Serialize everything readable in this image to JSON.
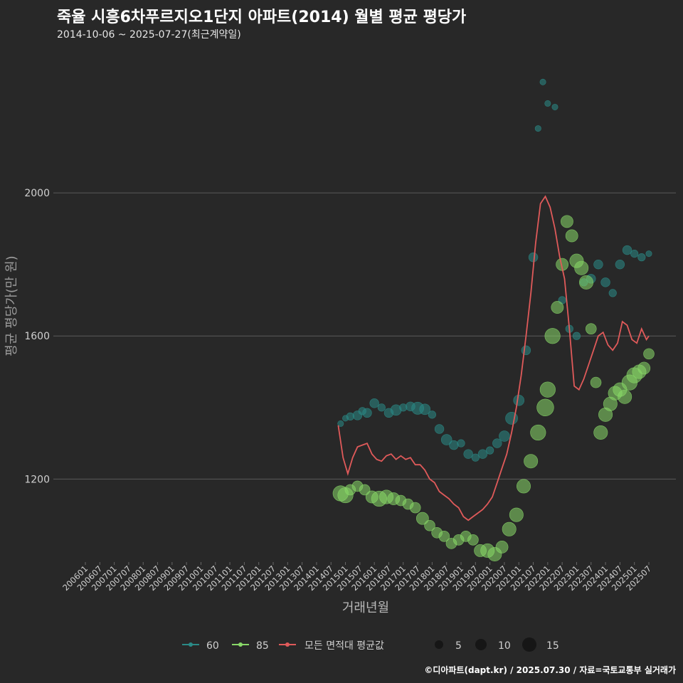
{
  "title": "죽율 시흥6차푸르지오1단지 아파트(2014) 월별 평균 평당가",
  "subtitle": "2014-10-06 ~ 2025-07-27(최근계약일)",
  "caption": "©디아파트(dapt.kr) / 2025.07.30 / 자료=국토교통부 실거래가",
  "colors": {
    "background": "#282828",
    "grid": "#5a5a5a",
    "series_60": "#2a8a86",
    "series_85": "#88d868",
    "average": "#e05a5a",
    "axis_text": "#d0d0d0"
  },
  "chart_data": {
    "type": "scatter",
    "xlabel": "거래년월",
    "ylabel": "평균 평당가(만 원)",
    "x_tick_labels": [
      "200601",
      "200607",
      "200701",
      "200707",
      "200801",
      "200807",
      "200901",
      "200907",
      "201001",
      "201007",
      "201101",
      "201107",
      "201201",
      "201207",
      "201301",
      "201307",
      "201401",
      "201407",
      "201501",
      "201507",
      "201601",
      "201607",
      "201701",
      "201707",
      "201801",
      "201807",
      "201901",
      "201907",
      "202001",
      "202007",
      "202101",
      "202107",
      "202201",
      "202207",
      "202301",
      "202307",
      "202401",
      "202407",
      "202501",
      "202507"
    ],
    "y_ticks": [
      1200,
      1600,
      2000
    ],
    "ylim": [
      968,
      2400
    ],
    "grid": true,
    "legend": {
      "position": "bottom",
      "series": [
        "60",
        "85",
        "모든 면적대 평균값"
      ],
      "size_title": "",
      "size_values": [
        5,
        10,
        15
      ]
    },
    "series": [
      {
        "name": "60",
        "points": [
          [
            "2014-11",
            1355,
            2
          ],
          [
            "2015-01",
            1370,
            2
          ],
          [
            "2015-03",
            1375,
            3
          ],
          [
            "2015-06",
            1378,
            4
          ],
          [
            "2015-08",
            1390,
            3
          ],
          [
            "2015-10",
            1385,
            4
          ],
          [
            "2016-01",
            1412,
            4
          ],
          [
            "2016-04",
            1400,
            3
          ],
          [
            "2016-07",
            1385,
            4
          ],
          [
            "2016-10",
            1393,
            5
          ],
          [
            "2017-01",
            1400,
            3
          ],
          [
            "2017-04",
            1403,
            4
          ],
          [
            "2017-07",
            1398,
            6
          ],
          [
            "2017-10",
            1395,
            5
          ],
          [
            "2018-01",
            1380,
            3
          ],
          [
            "2018-04",
            1340,
            4
          ],
          [
            "2018-07",
            1310,
            5
          ],
          [
            "2018-10",
            1295,
            4
          ],
          [
            "2019-01",
            1300,
            3
          ],
          [
            "2019-04",
            1270,
            4
          ],
          [
            "2019-07",
            1260,
            3
          ],
          [
            "2019-10",
            1270,
            4
          ],
          [
            "2020-01",
            1280,
            3
          ],
          [
            "2020-04",
            1300,
            4
          ],
          [
            "2020-07",
            1320,
            5
          ],
          [
            "2020-10",
            1370,
            6
          ],
          [
            "2021-01",
            1420,
            5
          ],
          [
            "2021-04",
            1560,
            4
          ],
          [
            "2021-07",
            1820,
            4
          ],
          [
            "2021-09",
            2180,
            2
          ],
          [
            "2021-11",
            2310,
            2
          ],
          [
            "2022-01",
            2250,
            2
          ],
          [
            "2022-04",
            2240,
            2
          ],
          [
            "2022-07",
            1700,
            3
          ],
          [
            "2022-10",
            1620,
            3
          ],
          [
            "2023-01",
            1600,
            3
          ],
          [
            "2023-04",
            1750,
            3
          ],
          [
            "2023-07",
            1760,
            4
          ],
          [
            "2023-10",
            1800,
            4
          ],
          [
            "2024-01",
            1750,
            4
          ],
          [
            "2024-04",
            1720,
            3
          ],
          [
            "2024-07",
            1800,
            4
          ],
          [
            "2024-10",
            1840,
            4
          ],
          [
            "2025-01",
            1830,
            3
          ],
          [
            "2025-04",
            1820,
            3
          ],
          [
            "2025-07",
            1830,
            2
          ]
        ]
      },
      {
        "name": "85",
        "points": [
          [
            "2014-11",
            1160,
            8
          ],
          [
            "2015-01",
            1155,
            8
          ],
          [
            "2015-03",
            1170,
            5
          ],
          [
            "2015-06",
            1180,
            5
          ],
          [
            "2015-09",
            1170,
            5
          ],
          [
            "2015-12",
            1150,
            6
          ],
          [
            "2016-03",
            1145,
            8
          ],
          [
            "2016-06",
            1150,
            7
          ],
          [
            "2016-09",
            1145,
            6
          ],
          [
            "2016-12",
            1140,
            5
          ],
          [
            "2017-03",
            1130,
            5
          ],
          [
            "2017-06",
            1120,
            5
          ],
          [
            "2017-09",
            1090,
            6
          ],
          [
            "2017-12",
            1070,
            5
          ],
          [
            "2018-03",
            1050,
            5
          ],
          [
            "2018-06",
            1040,
            5
          ],
          [
            "2018-09",
            1020,
            5
          ],
          [
            "2018-12",
            1030,
            5
          ],
          [
            "2019-03",
            1040,
            5
          ],
          [
            "2019-06",
            1030,
            5
          ],
          [
            "2019-09",
            1000,
            6
          ],
          [
            "2019-12",
            1000,
            7
          ],
          [
            "2020-03",
            990,
            7
          ],
          [
            "2020-06",
            1010,
            6
          ],
          [
            "2020-09",
            1060,
            7
          ],
          [
            "2020-12",
            1100,
            7
          ],
          [
            "2021-03",
            1180,
            7
          ],
          [
            "2021-06",
            1250,
            7
          ],
          [
            "2021-09",
            1330,
            8
          ],
          [
            "2021-12",
            1400,
            9
          ],
          [
            "2022-01",
            1450,
            8
          ],
          [
            "2022-03",
            1600,
            8
          ],
          [
            "2022-05",
            1680,
            6
          ],
          [
            "2022-07",
            1800,
            6
          ],
          [
            "2022-09",
            1920,
            6
          ],
          [
            "2022-11",
            1880,
            6
          ],
          [
            "2023-01",
            1810,
            7
          ],
          [
            "2023-03",
            1790,
            7
          ],
          [
            "2023-05",
            1750,
            7
          ],
          [
            "2023-07",
            1620,
            5
          ],
          [
            "2023-09",
            1470,
            5
          ],
          [
            "2023-11",
            1330,
            7
          ],
          [
            "2024-01",
            1380,
            7
          ],
          [
            "2024-03",
            1410,
            7
          ],
          [
            "2024-05",
            1440,
            7
          ],
          [
            "2024-07",
            1450,
            7
          ],
          [
            "2024-09",
            1430,
            7
          ],
          [
            "2024-11",
            1470,
            8
          ],
          [
            "2025-01",
            1490,
            8
          ],
          [
            "2025-03",
            1500,
            7
          ],
          [
            "2025-05",
            1510,
            6
          ],
          [
            "2025-07",
            1550,
            5
          ]
        ]
      },
      {
        "name": "모든 면적대 평균값",
        "points": [
          [
            "2014-10",
            1350
          ],
          [
            "2014-12",
            1260
          ],
          [
            "2015-02",
            1215
          ],
          [
            "2015-04",
            1260
          ],
          [
            "2015-06",
            1290
          ],
          [
            "2015-08",
            1295
          ],
          [
            "2015-10",
            1300
          ],
          [
            "2015-12",
            1270
          ],
          [
            "2016-02",
            1255
          ],
          [
            "2016-04",
            1250
          ],
          [
            "2016-06",
            1265
          ],
          [
            "2016-08",
            1270
          ],
          [
            "2016-10",
            1255
          ],
          [
            "2016-12",
            1265
          ],
          [
            "2017-02",
            1255
          ],
          [
            "2017-04",
            1260
          ],
          [
            "2017-06",
            1240
          ],
          [
            "2017-08",
            1240
          ],
          [
            "2017-10",
            1225
          ],
          [
            "2017-12",
            1200
          ],
          [
            "2018-02",
            1190
          ],
          [
            "2018-04",
            1165
          ],
          [
            "2018-06",
            1155
          ],
          [
            "2018-08",
            1145
          ],
          [
            "2018-10",
            1130
          ],
          [
            "2018-12",
            1120
          ],
          [
            "2019-02",
            1095
          ],
          [
            "2019-04",
            1085
          ],
          [
            "2019-06",
            1095
          ],
          [
            "2019-08",
            1105
          ],
          [
            "2019-10",
            1115
          ],
          [
            "2019-12",
            1130
          ],
          [
            "2020-02",
            1150
          ],
          [
            "2020-04",
            1190
          ],
          [
            "2020-06",
            1230
          ],
          [
            "2020-08",
            1270
          ],
          [
            "2020-10",
            1330
          ],
          [
            "2020-12",
            1400
          ],
          [
            "2021-02",
            1490
          ],
          [
            "2021-04",
            1600
          ],
          [
            "2021-06",
            1720
          ],
          [
            "2021-08",
            1860
          ],
          [
            "2021-10",
            1970
          ],
          [
            "2021-12",
            1990
          ],
          [
            "2022-02",
            1960
          ],
          [
            "2022-04",
            1900
          ],
          [
            "2022-06",
            1820
          ],
          [
            "2022-08",
            1760
          ],
          [
            "2022-10",
            1620
          ],
          [
            "2022-12",
            1460
          ],
          [
            "2023-02",
            1450
          ],
          [
            "2023-04",
            1480
          ],
          [
            "2023-06",
            1520
          ],
          [
            "2023-08",
            1560
          ],
          [
            "2023-10",
            1600
          ],
          [
            "2023-12",
            1610
          ],
          [
            "2024-02",
            1575
          ],
          [
            "2024-04",
            1560
          ],
          [
            "2024-06",
            1580
          ],
          [
            "2024-08",
            1640
          ],
          [
            "2024-10",
            1630
          ],
          [
            "2024-12",
            1590
          ],
          [
            "2025-02",
            1580
          ],
          [
            "2025-04",
            1620
          ],
          [
            "2025-06",
            1590
          ],
          [
            "2025-07",
            1600
          ]
        ]
      }
    ]
  }
}
